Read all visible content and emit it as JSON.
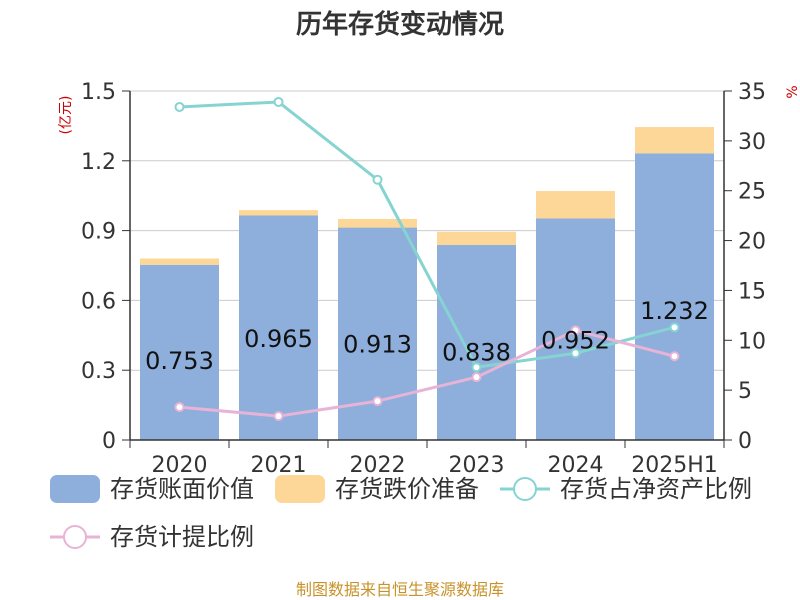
{
  "title": "历年存货变动情况",
  "source": "制图数据来自恒生聚源数据库",
  "chart_data": {
    "type": "bar",
    "stacked": true,
    "title": "历年存货变动情况",
    "categories": [
      "2020",
      "2021",
      "2022",
      "2023",
      "2024",
      "2025H1"
    ],
    "y_left": {
      "unit": "(亿元)",
      "ylim": [
        0,
        1.5
      ],
      "ticks": [
        "0",
        "0.3",
        "0.6",
        "0.9",
        "1.2",
        "1.5"
      ]
    },
    "y_right": {
      "unit": "%",
      "ylim": [
        0,
        35
      ],
      "ticks": [
        "0",
        "5",
        "10",
        "15",
        "20",
        "25",
        "30",
        "35"
      ]
    },
    "grid": true,
    "legend_position": "bottom",
    "series": [
      {
        "name": "存货账面价值",
        "kind": "bar",
        "axis": "left",
        "color": "#8eaedb",
        "values": [
          0.753,
          0.965,
          0.913,
          0.838,
          0.952,
          1.232
        ],
        "labels": [
          "0.753",
          "0.965",
          "0.913",
          "0.838",
          "0.952",
          "1.232"
        ]
      },
      {
        "name": "存货跌价准备",
        "kind": "bar",
        "axis": "left",
        "color": "#fdd797",
        "values": [
          0.027,
          0.023,
          0.037,
          0.057,
          0.118,
          0.113
        ]
      },
      {
        "name": "存货占净资产比例",
        "kind": "line",
        "axis": "right",
        "color": "#85d4d1",
        "values": [
          33.4,
          33.9,
          26.1,
          7.3,
          8.7,
          11.3
        ]
      },
      {
        "name": "存货计提比例",
        "kind": "line",
        "axis": "right",
        "color": "#e7b3d6",
        "values": [
          3.3,
          2.4,
          3.9,
          6.3,
          11.0,
          8.4
        ]
      }
    ]
  }
}
